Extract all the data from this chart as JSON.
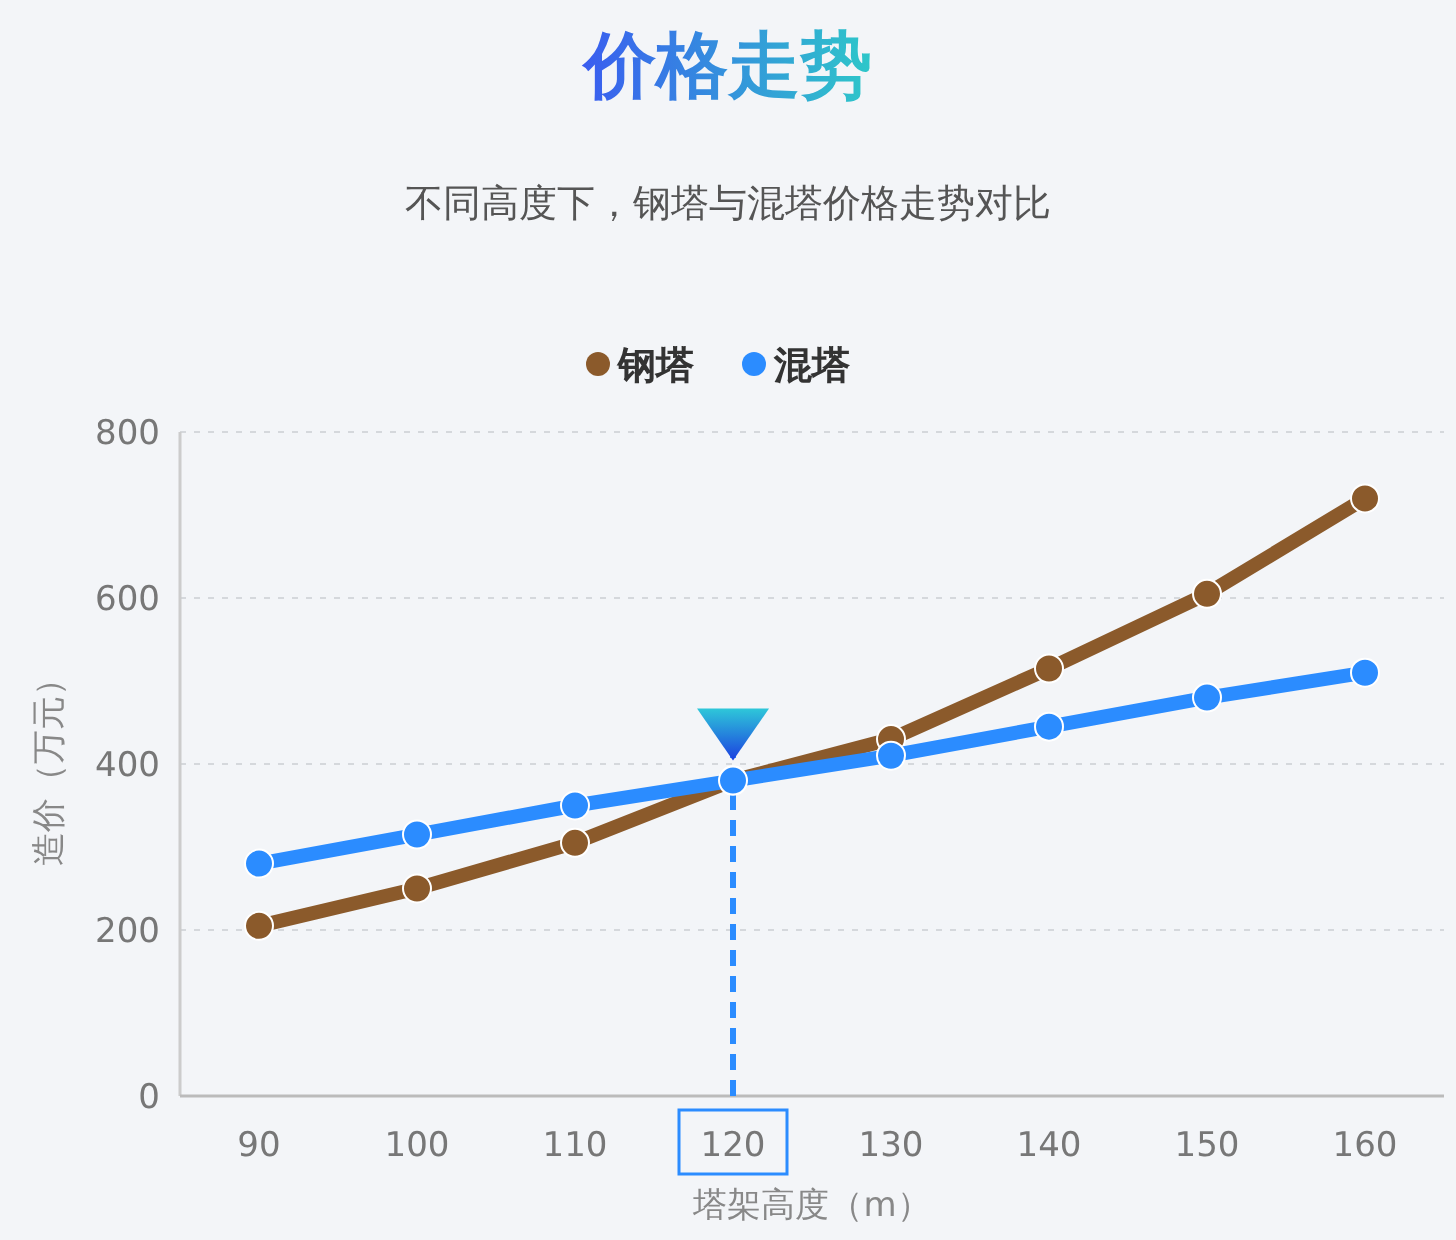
{
  "chart_data": {
    "type": "line",
    "title": "价格走势",
    "subtitle": "不同高度下，钢塔与混塔价格走势对比",
    "xlabel": "塔架高度（m）",
    "ylabel": "造价（万元）",
    "categories": [
      "90",
      "100",
      "110",
      "120",
      "130",
      "140",
      "150",
      "160"
    ],
    "series": [
      {
        "name": "钢塔",
        "color": "#8b5a2b",
        "values": [
          205,
          250,
          305,
          380,
          430,
          515,
          605,
          720
        ]
      },
      {
        "name": "混塔",
        "color": "#2b8cff",
        "values": [
          280,
          315,
          350,
          380,
          410,
          445,
          480,
          510
        ]
      }
    ],
    "ylim": [
      0,
      800
    ],
    "yticks": [
      0,
      200,
      400,
      600,
      800
    ],
    "grid": "y",
    "legend": "top",
    "marker": "circle",
    "line_style": "solid",
    "ref_lines": [
      {
        "axis": "x",
        "value": "120",
        "color": "#2b8cff",
        "line_style": "dashed"
      }
    ]
  }
}
